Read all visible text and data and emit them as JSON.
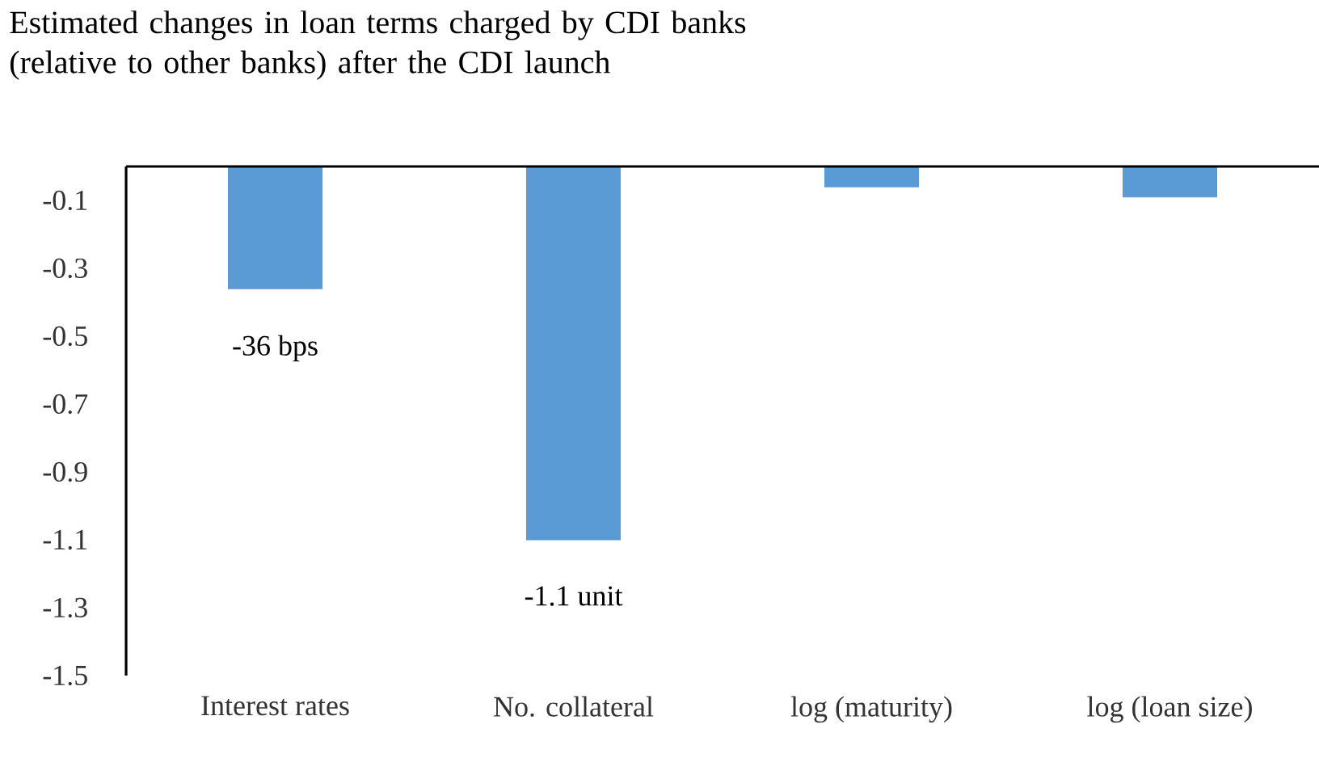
{
  "chart_data": {
    "type": "bar",
    "title": "Estimated changes in loan terms charged by CDI banks (relative  to other banks) after the CDI launch",
    "categories": [
      "Interest rates",
      "No. collateral",
      "log (maturity)",
      "log (loan size)"
    ],
    "values": [
      -0.36,
      -1.1,
      -0.06,
      -0.09
    ],
    "color": "#5b9bd5",
    "ylim": [
      -1.5,
      0
    ],
    "yticks": [
      -1.5,
      -1.3,
      -1.1,
      -0.9,
      -0.7,
      -0.5,
      -0.3,
      -0.1
    ],
    "annotations": [
      {
        "text": "-36 bps",
        "x": "Interest rates",
        "y": -0.36
      },
      {
        "text": "-1.1 unit",
        "x": "No. collateral",
        "y": -1.1
      }
    ]
  }
}
